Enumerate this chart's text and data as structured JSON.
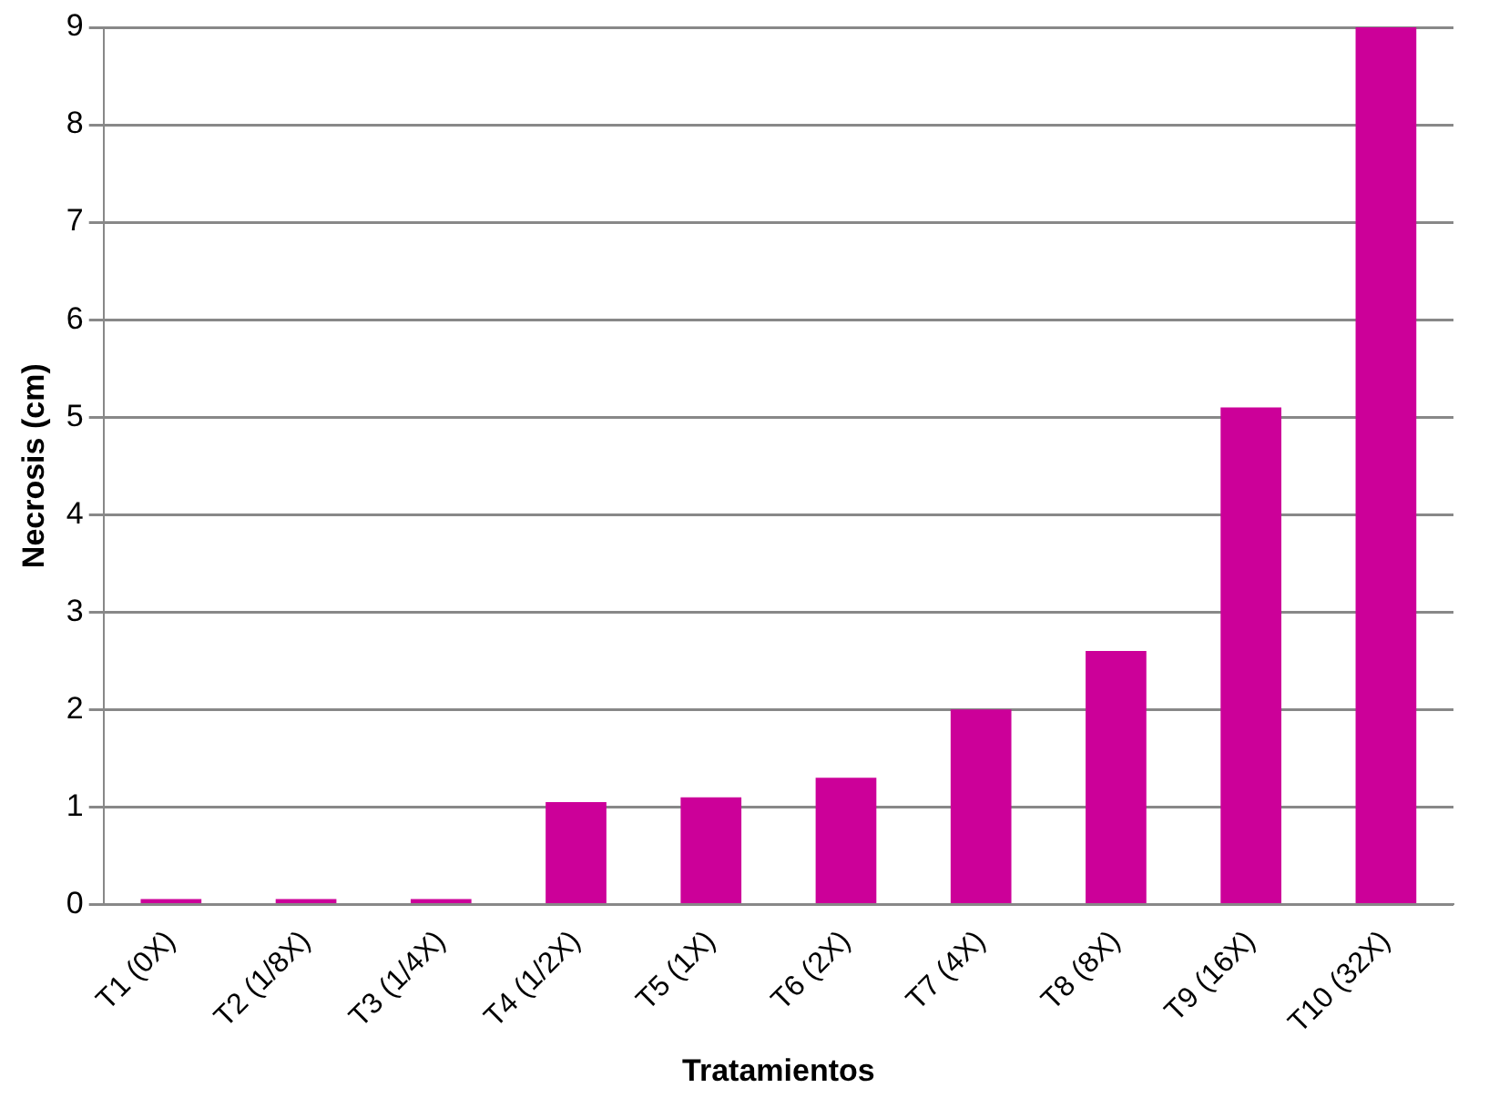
{
  "chart_data": {
    "type": "bar",
    "xlabel": "Tratamientos",
    "ylabel": "Necrosis (cm)",
    "categories": [
      "T1 (0X)",
      "T2 (1/8X)",
      "T3 (1/4X)",
      "T4 (1/2X)",
      "T5 (1X)",
      "T6 (2X)",
      "T7 (4X)",
      "T8 (8X)",
      "T9 (16X)",
      "T10 (32X)"
    ],
    "values": [
      0,
      0,
      0,
      1.05,
      1.1,
      1.3,
      2.0,
      2.6,
      5.1,
      9.0
    ],
    "color": "#cc0099",
    "ylim": [
      0,
      9
    ],
    "yticks": [
      0,
      1,
      2,
      3,
      4,
      5,
      6,
      7,
      8,
      9
    ],
    "grid": "y",
    "legend": false
  }
}
